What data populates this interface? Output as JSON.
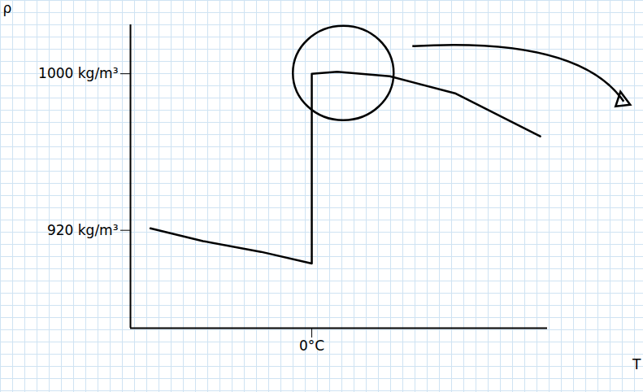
{
  "chart_data": {
    "type": "line",
    "x_label": "T",
    "y_label": "ρ",
    "x": [
      -8.9,
      -6,
      -2.8,
      0,
      0,
      1.4,
      4.3,
      7.9,
      12.6
    ],
    "values": [
      921,
      914.5,
      909,
      903,
      1000,
      1001,
      998.7,
      990,
      968
    ],
    "color": "#000000",
    "xlim": [
      -10,
      13
    ],
    "xticks": [
      {
        "value": 0,
        "label": "0°C"
      }
    ],
    "ylim": [
      870,
      1025
    ],
    "yticks": [
      {
        "value": 920,
        "label": "920 kg/m³"
      },
      {
        "value": 1000,
        "label": "1000 kg/m³"
      }
    ]
  }
}
